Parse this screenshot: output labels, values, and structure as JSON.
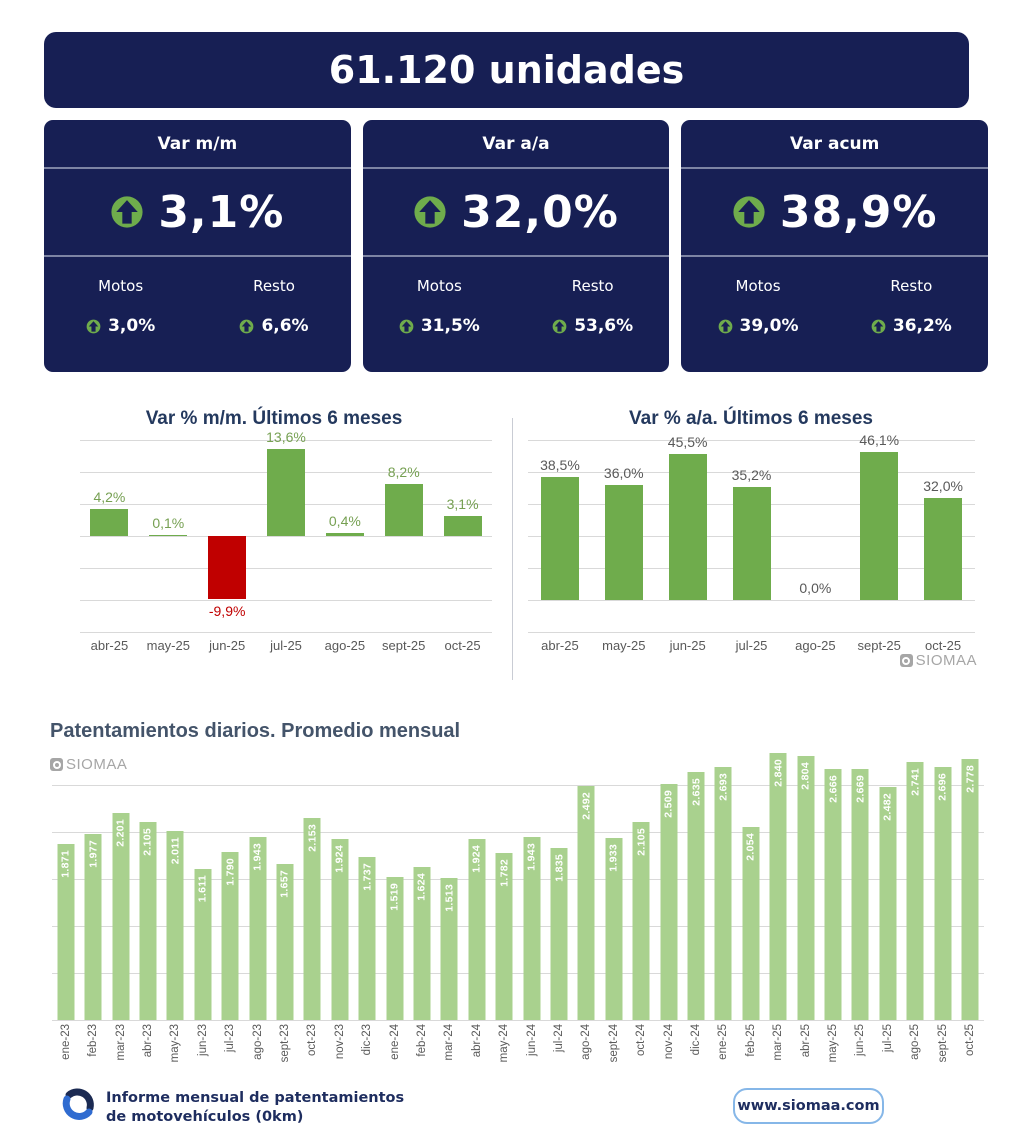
{
  "header": {
    "total": "61.120 unidades"
  },
  "cards": [
    {
      "title": "Var m/m",
      "value": "3,1%",
      "motos_label": "Motos",
      "resto_label": "Resto",
      "motos_value": "3,0%",
      "resto_value": "6,6%"
    },
    {
      "title": "Var a/a",
      "value": "32,0%",
      "motos_label": "Motos",
      "resto_label": "Resto",
      "motos_value": "31,5%",
      "resto_value": "53,6%"
    },
    {
      "title": "Var acum",
      "value": "38,9%",
      "motos_label": "Motos",
      "resto_label": "Resto",
      "motos_value": "39,0%",
      "resto_value": "36,2%"
    }
  ],
  "chart_data": [
    {
      "type": "bar",
      "title": "Var % m/m. Últimos 6 meses",
      "categories": [
        "abr-25",
        "may-25",
        "jun-25",
        "jul-25",
        "ago-25",
        "sept-25",
        "oct-25"
      ],
      "values": [
        4.2,
        0.1,
        -9.9,
        13.6,
        0.4,
        8.2,
        3.1
      ],
      "value_labels": [
        "4,2%",
        "0,1%",
        "-9,9%",
        "13,6%",
        "0,4%",
        "8,2%",
        "3,1%"
      ],
      "xlabel": "",
      "ylabel": "",
      "ylim": [
        -15,
        15
      ],
      "grid_step": 5,
      "grid_range": [
        -15,
        15
      ],
      "grid": true,
      "legend": false,
      "label_position": "outside",
      "bar_color_positive": "#6FAC4C",
      "bar_color_negative": "#C00000",
      "label_color_positive": "#76A052",
      "label_color_negative": "#C00000"
    },
    {
      "type": "bar",
      "title": "Var % a/a. Últimos 6 meses",
      "categories": [
        "abr-25",
        "may-25",
        "jun-25",
        "jul-25",
        "ago-25",
        "sept-25",
        "oct-25"
      ],
      "values": [
        38.5,
        36.0,
        45.5,
        35.2,
        0.0,
        46.1,
        32.0
      ],
      "value_labels": [
        "38,5%",
        "36,0%",
        "45,5%",
        "35,2%",
        "0,0%",
        "46,1%",
        "32,0%"
      ],
      "xlabel": "",
      "ylabel": "",
      "ylim": [
        -10,
        50
      ],
      "grid_step": 10,
      "grid_range": [
        -10,
        50
      ],
      "grid": true,
      "legend": false,
      "label_position": "outside",
      "bar_color_positive": "#6FAC4C",
      "bar_color_negative": "#C00000",
      "label_color_positive": "#595959",
      "label_color_negative": "#595959"
    },
    {
      "type": "bar",
      "title": "Patentamientos diarios. Promedio mensual",
      "categories": [
        "ene-23",
        "feb-23",
        "mar-23",
        "abr-23",
        "may-23",
        "jun-23",
        "jul-23",
        "ago-23",
        "sept-23",
        "oct-23",
        "nov-23",
        "dic-23",
        "ene-24",
        "feb-24",
        "mar-24",
        "abr-24",
        "may-24",
        "jun-24",
        "jul-24",
        "ago-24",
        "sept-24",
        "oct-24",
        "nov-24",
        "dic-24",
        "ene-25",
        "feb-25",
        "mar-25",
        "abr-25",
        "may-25",
        "jun-25",
        "jul-25",
        "ago-25",
        "sept-25",
        "oct-25"
      ],
      "values": [
        1871,
        1977,
        2201,
        2105,
        2011,
        1611,
        1790,
        1943,
        1657,
        2153,
        1924,
        1737,
        1519,
        1624,
        1513,
        1924,
        1782,
        1943,
        1835,
        2492,
        1933,
        2105,
        2509,
        2635,
        2693,
        2054,
        2840,
        2804,
        2666,
        2669,
        2482,
        2741,
        2696,
        2778
      ],
      "value_labels": [
        "1.871",
        "1.977",
        "2.201",
        "2.105",
        "2.011",
        "1.611",
        "1.790",
        "1.943",
        "1.657",
        "2.153",
        "1.924",
        "1.737",
        "1.519",
        "1.624",
        "1.513",
        "1.924",
        "1.782",
        "1.943",
        "1.835",
        "2.492",
        "1.933",
        "2.105",
        "2.509",
        "2.635",
        "2.693",
        "2.054",
        "2.840",
        "2.804",
        "2.666",
        "2.669",
        "2.482",
        "2.741",
        "2.696",
        "2.778"
      ],
      "xlabel": "",
      "ylabel": "",
      "ylim": [
        0,
        3000
      ],
      "grid_step": 500,
      "grid_range": [
        0,
        2500
      ],
      "grid": true,
      "legend": false,
      "label_position": "inside-rotated",
      "categories_rotated": true,
      "bar_color_positive": "#A9D18E",
      "bar_color_negative": "#C00000",
      "value_label_color": "#FFFFFF"
    }
  ],
  "watermark": {
    "text": "SIOMAA"
  },
  "footer": {
    "report_line1": "Informe mensual de patentamientos",
    "report_line2": "de motovehículos (0km)",
    "website": "www.siomaa.com"
  },
  "colors": {
    "navy": "#171F54",
    "green": "#6FAC4C",
    "light_green": "#A9D18E",
    "red": "#C00000",
    "title_navy": "#24395E",
    "slate": "#44546A",
    "axis_gray": "#595959",
    "grid_gray": "#D9D9D9",
    "watermark_gray": "#A6A6A6",
    "button_border": "#86B7E8"
  }
}
